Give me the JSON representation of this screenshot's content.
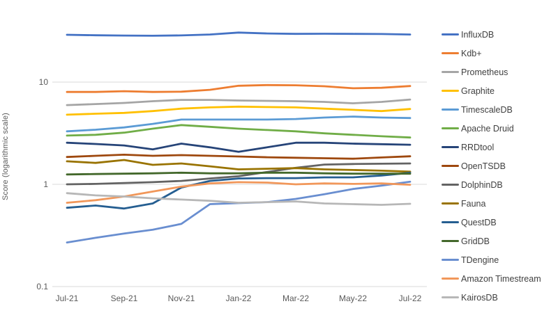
{
  "chart_data": {
    "type": "line",
    "title": "",
    "xlabel": "",
    "ylabel": "Score (logarithmic scale)",
    "y_scale": "log",
    "ylim": [
      0.1,
      46
    ],
    "grid": "horizontal-major-decades-only",
    "legend_position": "right",
    "y_ticks": [
      {
        "label": "10",
        "value": 10
      },
      {
        "label": "1",
        "value": 1
      },
      {
        "label": "0.1",
        "value": 0.1
      }
    ],
    "x": [
      "Jul-21",
      "Aug-21",
      "Sep-21",
      "Oct-21",
      "Nov-21",
      "Dec-21",
      "Jan-22",
      "Feb-22",
      "Mar-22",
      "Apr-22",
      "May-22",
      "Jun-22",
      "Jul-22"
    ],
    "x_tick_labels": [
      "Jul-21",
      "Sep-21",
      "Nov-21",
      "Jan-22",
      "Mar-22",
      "May-22",
      "Jul-22"
    ],
    "series": [
      {
        "name": "InfluxDB",
        "color": "#4472C4",
        "values": [
          29.0,
          28.7,
          28.5,
          28.4,
          28.6,
          29.2,
          30.5,
          29.9,
          29.6,
          29.7,
          29.6,
          29.5,
          29.2
        ]
      },
      {
        "name": "Kdb+",
        "color": "#ED7D31",
        "values": [
          8.0,
          8.0,
          8.15,
          8.0,
          8.05,
          8.4,
          9.2,
          9.35,
          9.3,
          9.1,
          8.7,
          8.8,
          9.15
        ]
      },
      {
        "name": "Prometheus",
        "color": "#A5A5A5",
        "values": [
          5.95,
          6.1,
          6.25,
          6.5,
          6.7,
          6.7,
          6.6,
          6.55,
          6.5,
          6.4,
          6.2,
          6.4,
          6.75
        ]
      },
      {
        "name": "Graphite",
        "color": "#FFC000",
        "values": [
          4.8,
          4.9,
          5.0,
          5.2,
          5.5,
          5.65,
          5.75,
          5.7,
          5.65,
          5.5,
          5.35,
          5.2,
          5.45
        ]
      },
      {
        "name": "TimescaleDB",
        "color": "#5B9BD5",
        "values": [
          3.3,
          3.42,
          3.6,
          3.9,
          4.3,
          4.3,
          4.3,
          4.3,
          4.35,
          4.5,
          4.6,
          4.5,
          4.45
        ]
      },
      {
        "name": "Apache Druid",
        "color": "#70AD47",
        "values": [
          3.0,
          3.05,
          3.2,
          3.5,
          3.8,
          3.65,
          3.5,
          3.4,
          3.3,
          3.15,
          3.05,
          2.95,
          2.87
        ]
      },
      {
        "name": "RRDtool",
        "color": "#264478",
        "values": [
          2.55,
          2.48,
          2.4,
          2.2,
          2.5,
          2.3,
          2.08,
          2.3,
          2.55,
          2.55,
          2.5,
          2.47,
          2.44
        ]
      },
      {
        "name": "OpenTSDB",
        "color": "#9E480E",
        "values": [
          1.85,
          1.9,
          1.95,
          1.9,
          1.93,
          1.9,
          1.87,
          1.84,
          1.82,
          1.8,
          1.78,
          1.83,
          1.88
        ]
      },
      {
        "name": "DolphinDB",
        "color": "#636363",
        "values": [
          1.0,
          1.01,
          1.03,
          1.05,
          1.08,
          1.14,
          1.2,
          1.32,
          1.45,
          1.56,
          1.58,
          1.59,
          1.6
        ]
      },
      {
        "name": "Fauna",
        "color": "#997300",
        "values": [
          1.68,
          1.62,
          1.73,
          1.55,
          1.6,
          1.5,
          1.4,
          1.42,
          1.44,
          1.4,
          1.38,
          1.36,
          1.33
        ]
      },
      {
        "name": "QuestDB",
        "color": "#255E91",
        "values": [
          0.59,
          0.62,
          0.58,
          0.65,
          0.93,
          1.08,
          1.14,
          1.15,
          1.15,
          1.17,
          1.17,
          1.22,
          1.3
        ]
      },
      {
        "name": "GridDB",
        "color": "#43682B",
        "values": [
          1.25,
          1.26,
          1.27,
          1.28,
          1.3,
          1.28,
          1.28,
          1.3,
          1.3,
          1.28,
          1.27,
          1.27,
          1.27
        ]
      },
      {
        "name": "TDengine",
        "color": "#698ED0",
        "values": [
          0.27,
          0.3,
          0.33,
          0.36,
          0.41,
          0.64,
          0.655,
          0.67,
          0.72,
          0.8,
          0.9,
          0.97,
          1.06
        ]
      },
      {
        "name": "Amazon Timestream",
        "color": "#F1975A",
        "values": [
          0.66,
          0.7,
          0.76,
          0.85,
          0.95,
          1.02,
          1.05,
          1.04,
          1.0,
          1.02,
          1.01,
          1.02,
          0.99
        ]
      },
      {
        "name": "KairosDB",
        "color": "#B7B7B7",
        "values": [
          0.82,
          0.78,
          0.76,
          0.73,
          0.71,
          0.69,
          0.66,
          0.67,
          0.68,
          0.65,
          0.64,
          0.63,
          0.645
        ]
      }
    ]
  },
  "colors": {
    "background": "#FFFFFF",
    "gridline": "#D9D9D9",
    "axis_text": "#595959",
    "legend_text": "#404040"
  }
}
